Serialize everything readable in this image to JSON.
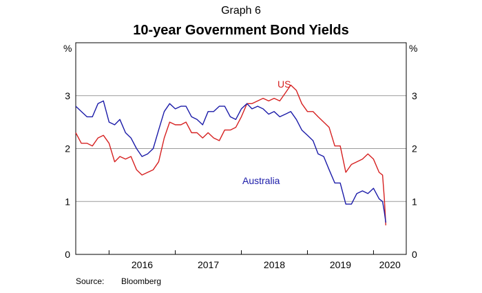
{
  "graph_number": "Graph 6",
  "source": {
    "label": "Source:",
    "value": "Bloomberg"
  },
  "chart_data": {
    "type": "line",
    "title": "10-year Government Bond Yields",
    "xlabel": "",
    "ylabel": "",
    "y_unit_left": "%",
    "y_unit_right": "%",
    "ylim": [
      0,
      4
    ],
    "yticks": [
      0,
      1,
      2,
      3
    ],
    "xlim": [
      "2015-07-01",
      "2020-06-30"
    ],
    "xtick_labels": [
      "2016",
      "2017",
      "2018",
      "2019",
      "2020"
    ],
    "grid": "horizontal",
    "colors": {
      "US": "#d62020",
      "Australia": "#1a1aa8"
    },
    "series": [
      {
        "name": "US",
        "x": [
          "2015-07-01",
          "2015-08-01",
          "2015-09-01",
          "2015-10-01",
          "2015-11-01",
          "2015-12-01",
          "2016-01-01",
          "2016-02-01",
          "2016-03-01",
          "2016-04-01",
          "2016-05-01",
          "2016-06-01",
          "2016-07-01",
          "2016-08-01",
          "2016-09-01",
          "2016-10-01",
          "2016-11-01",
          "2016-12-01",
          "2017-01-01",
          "2017-02-01",
          "2017-03-01",
          "2017-04-01",
          "2017-05-01",
          "2017-06-01",
          "2017-07-01",
          "2017-08-01",
          "2017-09-01",
          "2017-10-01",
          "2017-11-01",
          "2017-12-01",
          "2018-01-01",
          "2018-02-01",
          "2018-03-01",
          "2018-04-01",
          "2018-05-01",
          "2018-06-01",
          "2018-07-01",
          "2018-08-01",
          "2018-09-01",
          "2018-10-01",
          "2018-11-01",
          "2018-12-01",
          "2019-01-01",
          "2019-02-01",
          "2019-03-01",
          "2019-04-01",
          "2019-05-01",
          "2019-06-01",
          "2019-07-01",
          "2019-08-01",
          "2019-09-01",
          "2019-10-01",
          "2019-11-01",
          "2019-12-01",
          "2020-01-01",
          "2020-02-01",
          "2020-02-20",
          "2020-03-01",
          "2020-03-09"
        ],
        "values": [
          2.3,
          2.1,
          2.1,
          2.05,
          2.2,
          2.25,
          2.1,
          1.75,
          1.85,
          1.8,
          1.85,
          1.6,
          1.5,
          1.55,
          1.6,
          1.75,
          2.2,
          2.5,
          2.45,
          2.45,
          2.5,
          2.3,
          2.3,
          2.2,
          2.3,
          2.2,
          2.15,
          2.35,
          2.35,
          2.4,
          2.6,
          2.85,
          2.85,
          2.9,
          2.95,
          2.9,
          2.95,
          2.9,
          3.05,
          3.2,
          3.1,
          2.85,
          2.7,
          2.7,
          2.6,
          2.5,
          2.4,
          2.05,
          2.05,
          1.55,
          1.7,
          1.75,
          1.8,
          1.9,
          1.8,
          1.55,
          1.5,
          1.05,
          0.55
        ]
      },
      {
        "name": "Australia",
        "x": [
          "2015-07-01",
          "2015-08-01",
          "2015-09-01",
          "2015-10-01",
          "2015-11-01",
          "2015-12-01",
          "2016-01-01",
          "2016-02-01",
          "2016-03-01",
          "2016-04-01",
          "2016-05-01",
          "2016-06-01",
          "2016-07-01",
          "2016-08-01",
          "2016-09-01",
          "2016-10-01",
          "2016-11-01",
          "2016-12-01",
          "2017-01-01",
          "2017-02-01",
          "2017-03-01",
          "2017-04-01",
          "2017-05-01",
          "2017-06-01",
          "2017-07-01",
          "2017-08-01",
          "2017-09-01",
          "2017-10-01",
          "2017-11-01",
          "2017-12-01",
          "2018-01-01",
          "2018-02-01",
          "2018-03-01",
          "2018-04-01",
          "2018-05-01",
          "2018-06-01",
          "2018-07-01",
          "2018-08-01",
          "2018-09-01",
          "2018-10-01",
          "2018-11-01",
          "2018-12-01",
          "2019-01-01",
          "2019-02-01",
          "2019-03-01",
          "2019-04-01",
          "2019-05-01",
          "2019-06-01",
          "2019-07-01",
          "2019-08-01",
          "2019-09-01",
          "2019-10-01",
          "2019-11-01",
          "2019-12-01",
          "2020-01-01",
          "2020-02-01",
          "2020-02-20",
          "2020-03-01",
          "2020-03-09"
        ],
        "values": [
          2.8,
          2.7,
          2.6,
          2.6,
          2.85,
          2.9,
          2.5,
          2.45,
          2.55,
          2.3,
          2.2,
          2.0,
          1.85,
          1.9,
          2.0,
          2.35,
          2.7,
          2.85,
          2.75,
          2.8,
          2.8,
          2.6,
          2.55,
          2.45,
          2.7,
          2.7,
          2.8,
          2.8,
          2.6,
          2.55,
          2.75,
          2.85,
          2.75,
          2.8,
          2.75,
          2.65,
          2.7,
          2.6,
          2.65,
          2.7,
          2.55,
          2.35,
          2.25,
          2.15,
          1.9,
          1.85,
          1.6,
          1.35,
          1.35,
          0.95,
          0.95,
          1.15,
          1.2,
          1.15,
          1.25,
          1.05,
          1.0,
          0.8,
          0.6
        ]
      }
    ],
    "annotations": [
      {
        "text": "US",
        "series": "US"
      },
      {
        "text": "Australia",
        "series": "Australia"
      }
    ]
  }
}
